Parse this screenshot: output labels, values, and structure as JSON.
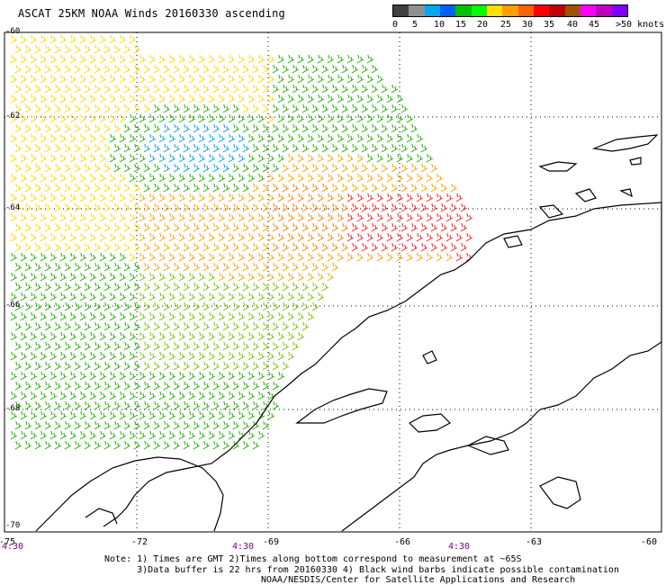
{
  "title": "ASCAT 25KM NOAA Winds 20160330 ascending",
  "legend": {
    "colors": [
      "#404040",
      "#909090",
      "#00a8f0",
      "#0060ff",
      "#00c000",
      "#00ff00",
      "#ffe000",
      "#ffa000",
      "#ff6000",
      "#ff0000",
      "#c00000",
      "#a05000",
      "#ff00ff",
      "#c000c0",
      "#8000ff"
    ],
    "labels": [
      "0",
      "5",
      "10",
      "15",
      "20",
      "25",
      "30",
      "35",
      "40",
      "45",
      ">50 knots"
    ]
  },
  "lon_labels": [
    "-75",
    "-72",
    "-69",
    "-66",
    "-63",
    "-60"
  ],
  "lat_labels": [
    "-60",
    "-62",
    "-64",
    "-66",
    "-68",
    "-70"
  ],
  "time_labels": [
    "4:30",
    "4:30",
    "4:30"
  ],
  "note_line1": "Note: 1) Times are GMT 2)Times along bottom correspond to measurement at ~65S",
  "note_line2": "      3)Data buffer is 22 hrs from 20160330 4) Black wind barbs indicate possible contamination",
  "credit": "NOAA/NESDIS/Center for Satellite Applications and Research"
}
